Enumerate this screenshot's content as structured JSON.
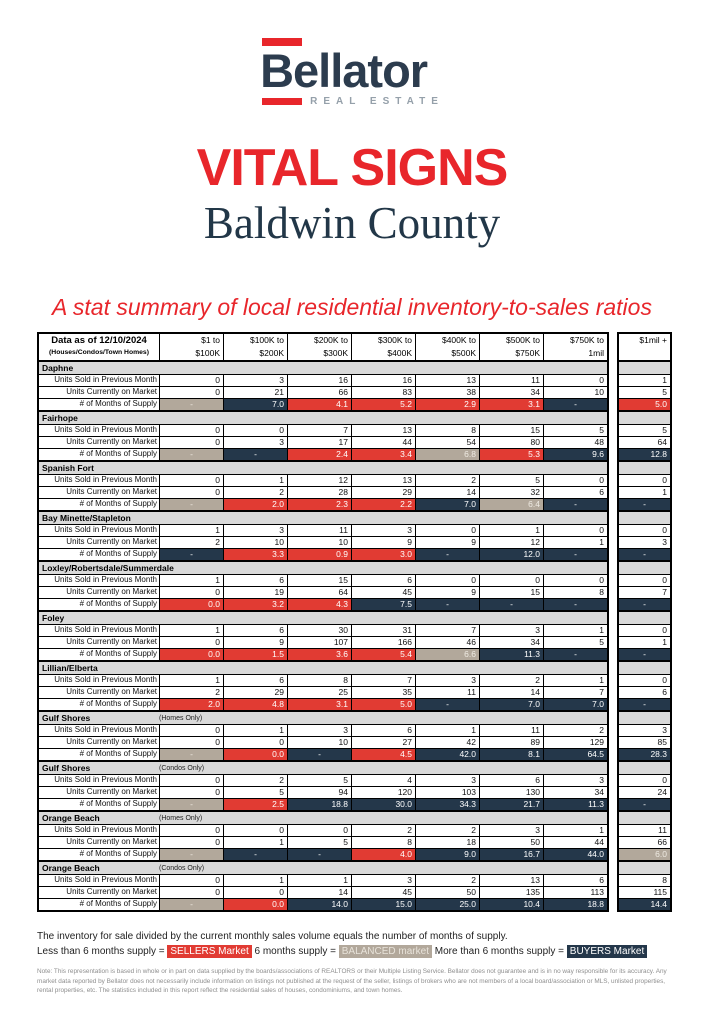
{
  "brand": {
    "name": "Bellator",
    "tagline": "REAL ESTATE"
  },
  "title": "VITAL SIGNS",
  "subtitle": "Baldwin County",
  "tagline": "A stat summary of local residential inventory-to-sales ratios",
  "colors": {
    "sellers": "#e13b33",
    "buyers": "#24374a",
    "balanced": "#b2a89b",
    "brand_red": "#e8262b",
    "brand_navy": "#2c3c4e",
    "section_gray": "#d9d9d9"
  },
  "table": {
    "corner_title": "Data as of 12/10/2024",
    "corner_subtitle": "(Houses/Condos/Town Homes)",
    "columns": [
      {
        "line1": "$1 to",
        "line2": "$100K"
      },
      {
        "line1": "$100K to",
        "line2": "$200K"
      },
      {
        "line1": "$200K to",
        "line2": "$300K"
      },
      {
        "line1": "$300K to",
        "line2": "$400K"
      },
      {
        "line1": "$400K to",
        "line2": "$500K"
      },
      {
        "line1": "$500K to",
        "line2": "$750K"
      },
      {
        "line1": "$750K to",
        "line2": "1mil"
      }
    ],
    "last_column": {
      "line1": "$1mil +",
      "line2": ""
    },
    "row_labels": {
      "sold": "Units Sold in Previous Month",
      "market": "Units Currently on Market",
      "supply": "# of Months of Supply"
    },
    "sections": [
      {
        "name": "Daphne",
        "note": "",
        "sold": [
          0,
          3,
          16,
          16,
          13,
          11,
          0,
          1
        ],
        "market": [
          0,
          21,
          66,
          83,
          38,
          34,
          10,
          5
        ],
        "supply": [
          {
            "v": "-",
            "m": "balanced"
          },
          {
            "v": "7.0",
            "m": "buyers"
          },
          {
            "v": "4.1",
            "m": "sellers"
          },
          {
            "v": "5.2",
            "m": "sellers"
          },
          {
            "v": "2.9",
            "m": "sellers"
          },
          {
            "v": "3.1",
            "m": "sellers"
          },
          {
            "v": "-",
            "m": "buyers"
          },
          {
            "v": "5.0",
            "m": "sellers"
          }
        ]
      },
      {
        "name": "Fairhope",
        "note": "",
        "sold": [
          0,
          0,
          7,
          13,
          8,
          15,
          5,
          5
        ],
        "market": [
          0,
          3,
          17,
          44,
          54,
          80,
          48,
          64
        ],
        "supply": [
          {
            "v": "-",
            "m": "balanced"
          },
          {
            "v": "-",
            "m": "buyers"
          },
          {
            "v": "2.4",
            "m": "sellers"
          },
          {
            "v": "3.4",
            "m": "sellers"
          },
          {
            "v": "6.8",
            "m": "balanced"
          },
          {
            "v": "5.3",
            "m": "sellers"
          },
          {
            "v": "9.6",
            "m": "buyers"
          },
          {
            "v": "12.8",
            "m": "buyers"
          }
        ]
      },
      {
        "name": "Spanish Fort",
        "note": "",
        "sold": [
          0,
          1,
          12,
          13,
          2,
          5,
          0,
          0
        ],
        "market": [
          0,
          2,
          28,
          29,
          14,
          32,
          6,
          1
        ],
        "supply": [
          {
            "v": "-",
            "m": "balanced"
          },
          {
            "v": "2.0",
            "m": "sellers"
          },
          {
            "v": "2.3",
            "m": "sellers"
          },
          {
            "v": "2.2",
            "m": "sellers"
          },
          {
            "v": "7.0",
            "m": "buyers"
          },
          {
            "v": "6.4",
            "m": "balanced"
          },
          {
            "v": "-",
            "m": "buyers"
          },
          {
            "v": "-",
            "m": "buyers"
          }
        ]
      },
      {
        "name": "Bay Minette/Stapleton",
        "note": "",
        "sold": [
          1,
          3,
          11,
          3,
          0,
          1,
          0,
          0
        ],
        "market": [
          2,
          10,
          10,
          9,
          9,
          12,
          1,
          3
        ],
        "supply": [
          {
            "v": "-",
            "m": "buyers"
          },
          {
            "v": "3.3",
            "m": "sellers"
          },
          {
            "v": "0.9",
            "m": "sellers"
          },
          {
            "v": "3.0",
            "m": "sellers"
          },
          {
            "v": "-",
            "m": "buyers"
          },
          {
            "v": "12.0",
            "m": "buyers"
          },
          {
            "v": "-",
            "m": "buyers"
          },
          {
            "v": "-",
            "m": "buyers"
          }
        ]
      },
      {
        "name": "Loxley/Robertsdale/Summerdale",
        "note": "",
        "sold": [
          1,
          6,
          15,
          6,
          0,
          0,
          0,
          0
        ],
        "market": [
          0,
          19,
          64,
          45,
          9,
          15,
          8,
          7
        ],
        "supply": [
          {
            "v": "0.0",
            "m": "sellers"
          },
          {
            "v": "3.2",
            "m": "sellers"
          },
          {
            "v": "4.3",
            "m": "sellers"
          },
          {
            "v": "7.5",
            "m": "buyers"
          },
          {
            "v": "-",
            "m": "buyers"
          },
          {
            "v": "-",
            "m": "buyers"
          },
          {
            "v": "-",
            "m": "buyers"
          },
          {
            "v": "-",
            "m": "buyers"
          }
        ]
      },
      {
        "name": "Foley",
        "note": "",
        "sold": [
          1,
          6,
          30,
          31,
          7,
          3,
          1,
          0
        ],
        "market": [
          0,
          9,
          107,
          166,
          46,
          34,
          5,
          1
        ],
        "supply": [
          {
            "v": "0.0",
            "m": "sellers"
          },
          {
            "v": "1.5",
            "m": "sellers"
          },
          {
            "v": "3.6",
            "m": "sellers"
          },
          {
            "v": "5.4",
            "m": "sellers"
          },
          {
            "v": "6.6",
            "m": "balanced"
          },
          {
            "v": "11.3",
            "m": "buyers"
          },
          {
            "v": "-",
            "m": "buyers"
          },
          {
            "v": "-",
            "m": "buyers"
          }
        ]
      },
      {
        "name": "Lillian/Elberta",
        "note": "",
        "sold": [
          1,
          6,
          8,
          7,
          3,
          2,
          1,
          0
        ],
        "market": [
          2,
          29,
          25,
          35,
          11,
          14,
          7,
          6
        ],
        "supply": [
          {
            "v": "2.0",
            "m": "sellers"
          },
          {
            "v": "4.8",
            "m": "sellers"
          },
          {
            "v": "3.1",
            "m": "sellers"
          },
          {
            "v": "5.0",
            "m": "sellers"
          },
          {
            "v": "-",
            "m": "buyers"
          },
          {
            "v": "7.0",
            "m": "buyers"
          },
          {
            "v": "7.0",
            "m": "buyers"
          },
          {
            "v": "-",
            "m": "buyers"
          }
        ]
      },
      {
        "name": "Gulf Shores",
        "note": "(Homes Only)",
        "sold": [
          0,
          1,
          3,
          6,
          1,
          11,
          2,
          3
        ],
        "market": [
          0,
          0,
          10,
          27,
          42,
          89,
          129,
          85
        ],
        "supply": [
          {
            "v": "-",
            "m": "balanced"
          },
          {
            "v": "0.0",
            "m": "sellers"
          },
          {
            "v": "-",
            "m": "buyers"
          },
          {
            "v": "4.5",
            "m": "sellers"
          },
          {
            "v": "42.0",
            "m": "buyers"
          },
          {
            "v": "8.1",
            "m": "buyers"
          },
          {
            "v": "64.5",
            "m": "buyers"
          },
          {
            "v": "28.3",
            "m": "buyers"
          }
        ]
      },
      {
        "name": "Gulf Shores",
        "note": "(Condos Only)",
        "sold": [
          0,
          2,
          5,
          4,
          3,
          6,
          3,
          0
        ],
        "market": [
          0,
          5,
          94,
          120,
          103,
          130,
          34,
          24
        ],
        "supply": [
          {
            "v": "-",
            "m": "balanced"
          },
          {
            "v": "2.5",
            "m": "sellers"
          },
          {
            "v": "18.8",
            "m": "buyers"
          },
          {
            "v": "30.0",
            "m": "buyers"
          },
          {
            "v": "34.3",
            "m": "buyers"
          },
          {
            "v": "21.7",
            "m": "buyers"
          },
          {
            "v": "11.3",
            "m": "buyers"
          },
          {
            "v": "-",
            "m": "buyers"
          }
        ]
      },
      {
        "name": "Orange Beach",
        "note": "(Homes Only)",
        "sold": [
          0,
          0,
          0,
          2,
          2,
          3,
          1,
          11
        ],
        "market": [
          0,
          1,
          5,
          8,
          18,
          50,
          44,
          66
        ],
        "supply": [
          {
            "v": "-",
            "m": "balanced"
          },
          {
            "v": "-",
            "m": "buyers"
          },
          {
            "v": "-",
            "m": "buyers"
          },
          {
            "v": "4.0",
            "m": "sellers"
          },
          {
            "v": "9.0",
            "m": "buyers"
          },
          {
            "v": "16.7",
            "m": "buyers"
          },
          {
            "v": "44.0",
            "m": "buyers"
          },
          {
            "v": "6.0",
            "m": "balanced"
          }
        ]
      },
      {
        "name": "Orange Beach",
        "note": "(Condos Only)",
        "sold": [
          0,
          1,
          1,
          3,
          2,
          13,
          6,
          8
        ],
        "market": [
          0,
          0,
          14,
          45,
          50,
          135,
          113,
          115
        ],
        "supply": [
          {
            "v": "-",
            "m": "balanced"
          },
          {
            "v": "0.0",
            "m": "sellers"
          },
          {
            "v": "14.0",
            "m": "buyers"
          },
          {
            "v": "15.0",
            "m": "buyers"
          },
          {
            "v": "25.0",
            "m": "buyers"
          },
          {
            "v": "10.4",
            "m": "buyers"
          },
          {
            "v": "18.8",
            "m": "buyers"
          },
          {
            "v": "14.4",
            "m": "buyers"
          }
        ]
      }
    ]
  },
  "footer": {
    "line1": "The inventory for sale divided by the current monthly sales volume equals the number of months of supply.",
    "legend": {
      "pre_sellers": "Less than 6 months supply = ",
      "sellers_badge": "SELLERS Market",
      "pre_balanced": " 6 months supply = ",
      "balanced_badge": "BALANCED market",
      "pre_buyers": "  More than 6 months supply = ",
      "buyers_badge": "BUYERS Market"
    },
    "note": "Note: This representation is based in whole or in part on data supplied by the boards/associations of REALTORS or their Multiple Listing Service. Bellator does not guarantee and is in no way responsible for its accuracy. Any market data reported by Bellator does not necessarily include information on listings not published at the request of the seller, listings of brokers who are not members of a local board/association or MLS, unlisted properties, rental properties, etc. The statistics included in this report reflect the residential sales of houses, condominiums, and town homes."
  }
}
